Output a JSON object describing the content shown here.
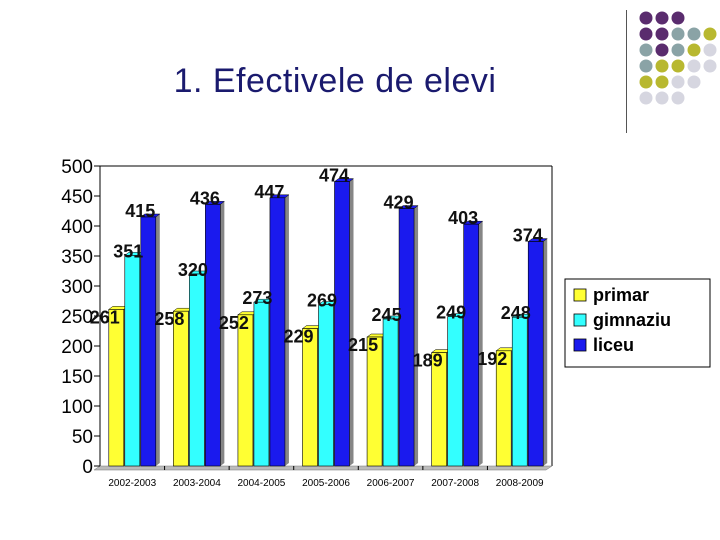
{
  "slide": {
    "title": "1. Efectivele de elevi"
  },
  "decor": {
    "dot_colors": [
      "#5a2c6e",
      "#8aa3a6",
      "#b8b830",
      "#d6d6e0"
    ]
  },
  "chart_data": {
    "type": "bar",
    "categories": [
      "2002-2003",
      "2003-2004",
      "2004-2005",
      "2005-2006",
      "2006-2007",
      "2007-2008",
      "2008-2009"
    ],
    "series": [
      {
        "name": "primar",
        "color": "#ffff33",
        "values": [
          261,
          258,
          252,
          229,
          215,
          189,
          192
        ]
      },
      {
        "name": "gimnaziu",
        "color": "#33ffff",
        "values": [
          351,
          320,
          273,
          269,
          245,
          249,
          248
        ]
      },
      {
        "name": "liceu",
        "color": "#1a1aee",
        "values": [
          415,
          436,
          447,
          474,
          429,
          403,
          374
        ]
      }
    ],
    "ylim": [
      0,
      500
    ],
    "yticks": [
      0,
      50,
      100,
      150,
      200,
      250,
      300,
      350,
      400,
      450,
      500
    ],
    "legend": "right",
    "grid": false,
    "data_labels": true
  }
}
